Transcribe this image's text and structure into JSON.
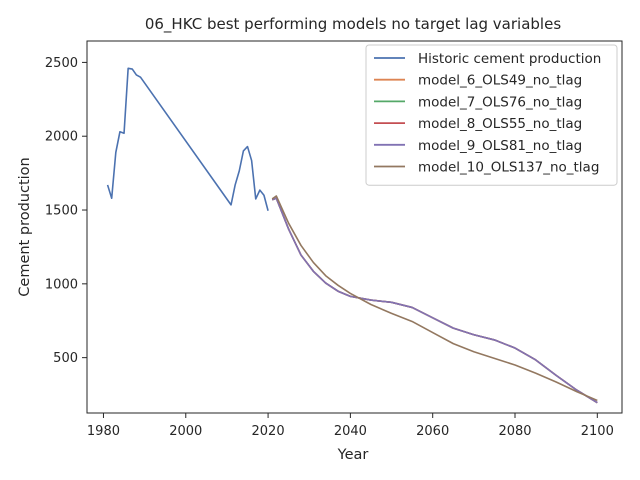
{
  "chart_data": {
    "type": "line",
    "title": "06_HKC best performing models no target lag variables",
    "xlabel": "Year",
    "ylabel": "Cement production",
    "xlim": [
      1976,
      2106
    ],
    "ylim": [
      125,
      2645
    ],
    "xticks": [
      1980,
      2000,
      2020,
      2040,
      2060,
      2080,
      2100
    ],
    "yticks": [
      500,
      1000,
      1500,
      2000,
      2500
    ],
    "grid": false,
    "legend_position": "top-right",
    "series": [
      {
        "name": "Historic cement production",
        "color": "#4c72b0",
        "x": [
          1981,
          1982,
          1983,
          1984,
          1985,
          1986,
          1987,
          1988,
          1989,
          2011,
          2012,
          2013,
          2014,
          2015,
          2016,
          2017,
          2018,
          2019,
          2020
        ],
        "y": [
          1670,
          1580,
          1890,
          2030,
          2020,
          2460,
          2455,
          2415,
          2400,
          1535,
          1670,
          1765,
          1900,
          1930,
          1835,
          1575,
          1635,
          1600,
          1495
        ]
      },
      {
        "name": "model_6_OLS49_no_tlag",
        "color": "#dd8452",
        "x": [
          2021,
          2022,
          2025,
          2028,
          2031,
          2034,
          2037,
          2040,
          2045,
          2050,
          2055,
          2060,
          2065,
          2070,
          2075,
          2080,
          2085,
          2090,
          2095,
          2100
        ],
        "y": [
          1570,
          1580,
          1370,
          1195,
          1085,
          1005,
          950,
          915,
          890,
          875,
          840,
          770,
          700,
          655,
          620,
          565,
          485,
          380,
          280,
          195
        ]
      },
      {
        "name": "model_7_OLS76_no_tlag",
        "color": "#55a868",
        "x": [
          2021,
          2022,
          2025,
          2028,
          2031,
          2034,
          2037,
          2040,
          2045,
          2050,
          2055,
          2060,
          2065,
          2070,
          2075,
          2080,
          2085,
          2090,
          2095,
          2100
        ],
        "y": [
          1570,
          1580,
          1370,
          1195,
          1085,
          1005,
          950,
          915,
          890,
          875,
          840,
          770,
          700,
          655,
          620,
          565,
          485,
          380,
          280,
          195
        ]
      },
      {
        "name": "model_8_OLS55_no_tlag",
        "color": "#c44e52",
        "x": [
          2021,
          2022,
          2025,
          2028,
          2031,
          2034,
          2037,
          2040,
          2045,
          2050,
          2055,
          2060,
          2065,
          2070,
          2075,
          2080,
          2085,
          2090,
          2095,
          2100
        ],
        "y": [
          1570,
          1580,
          1370,
          1195,
          1085,
          1005,
          950,
          915,
          890,
          875,
          840,
          770,
          700,
          655,
          620,
          565,
          485,
          380,
          280,
          195
        ]
      },
      {
        "name": "model_9_OLS81_no_tlag",
        "color": "#8172b3",
        "x": [
          2021,
          2022,
          2025,
          2028,
          2031,
          2034,
          2037,
          2040,
          2045,
          2050,
          2055,
          2060,
          2065,
          2070,
          2075,
          2080,
          2085,
          2090,
          2095,
          2100
        ],
        "y": [
          1570,
          1580,
          1370,
          1195,
          1085,
          1005,
          950,
          915,
          890,
          875,
          840,
          770,
          700,
          655,
          620,
          565,
          485,
          380,
          280,
          195
        ]
      },
      {
        "name": "model_10_OLS137_no_tlag",
        "color": "#937860",
        "x": [
          2021,
          2022,
          2025,
          2028,
          2031,
          2034,
          2037,
          2040,
          2045,
          2050,
          2055,
          2060,
          2065,
          2070,
          2075,
          2080,
          2085,
          2090,
          2095,
          2100
        ],
        "y": [
          1575,
          1595,
          1410,
          1260,
          1145,
          1055,
          990,
          935,
          860,
          800,
          745,
          670,
          595,
          540,
          495,
          450,
          395,
          335,
          270,
          210
        ]
      }
    ]
  }
}
